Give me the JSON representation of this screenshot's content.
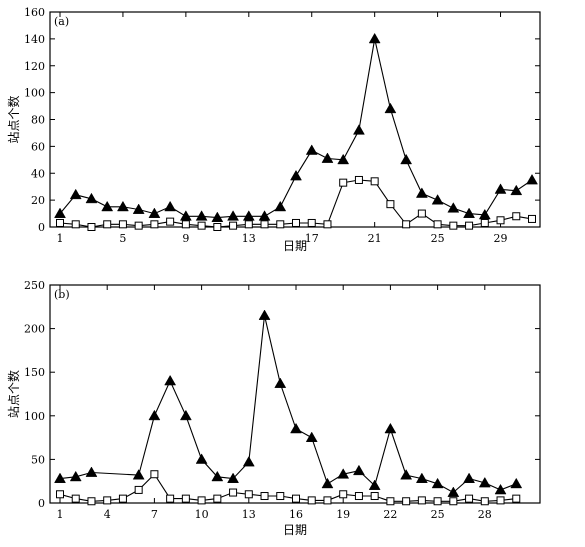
{
  "chart_data": [
    {
      "type": "line",
      "panel_label": "(a)",
      "xlabel": "日期",
      "ylabel": "站点个数",
      "xlim": [
        1,
        31
      ],
      "ylim": [
        0,
        160
      ],
      "x_ticks": [
        1,
        5,
        9,
        13,
        17,
        21,
        25,
        29
      ],
      "y_ticks": [
        0,
        20,
        40,
        60,
        80,
        100,
        120,
        140,
        160
      ],
      "grid": false,
      "series": [
        {
          "marker": "filled-triangle",
          "x": [
            1,
            2,
            3,
            4,
            5,
            6,
            7,
            8,
            9,
            10,
            11,
            12,
            13,
            14,
            15,
            16,
            17,
            18,
            19,
            20,
            21,
            22,
            23,
            24,
            25,
            26,
            27,
            28,
            29,
            30,
            31
          ],
          "y": [
            10,
            24,
            21,
            15,
            15,
            13,
            10,
            15,
            8,
            8,
            7,
            8,
            8,
            8,
            15,
            38,
            57,
            51,
            50,
            72,
            140,
            88,
            50,
            25,
            20,
            14,
            10,
            9,
            28,
            27,
            35
          ]
        },
        {
          "marker": "open-square",
          "x": [
            1,
            2,
            3,
            4,
            5,
            6,
            7,
            8,
            9,
            10,
            11,
            12,
            13,
            14,
            15,
            16,
            17,
            18,
            19,
            20,
            21,
            22,
            23,
            24,
            25,
            26,
            27,
            28,
            29,
            30,
            31
          ],
          "y": [
            3,
            2,
            0,
            2,
            2,
            1,
            2,
            4,
            2,
            1,
            0,
            1,
            2,
            2,
            2,
            3,
            3,
            2,
            33,
            35,
            34,
            17,
            2,
            10,
            2,
            1,
            1,
            3,
            5,
            8,
            6
          ]
        }
      ]
    },
    {
      "type": "line",
      "panel_label": "(b)",
      "xlabel": "日期",
      "ylabel": "站点个数",
      "xlim": [
        1,
        31
      ],
      "ylim": [
        0,
        250
      ],
      "x_ticks": [
        1,
        4,
        7,
        10,
        13,
        16,
        19,
        22,
        25,
        28
      ],
      "y_ticks": [
        0,
        50,
        100,
        150,
        200,
        250
      ],
      "grid": false,
      "series": [
        {
          "marker": "filled-triangle",
          "x": [
            1,
            2,
            3,
            6,
            7,
            8,
            9,
            10,
            11,
            12,
            13,
            14,
            15,
            16,
            17,
            18,
            19,
            20,
            21,
            22,
            23,
            24,
            25,
            26,
            27,
            28,
            29,
            30
          ],
          "y": [
            28,
            30,
            35,
            32,
            100,
            140,
            100,
            50,
            30,
            28,
            47,
            215,
            137,
            85,
            75,
            22,
            33,
            37,
            20,
            85,
            32,
            28,
            22,
            12,
            28,
            23,
            15,
            22
          ]
        },
        {
          "marker": "open-square",
          "x": [
            1,
            2,
            3,
            4,
            5,
            6,
            7,
            8,
            9,
            10,
            11,
            12,
            13,
            14,
            15,
            16,
            17,
            18,
            19,
            20,
            21,
            22,
            23,
            24,
            25,
            26,
            27,
            28,
            29,
            30
          ],
          "y": [
            10,
            5,
            2,
            3,
            5,
            15,
            33,
            5,
            5,
            3,
            5,
            12,
            10,
            8,
            8,
            5,
            3,
            3,
            10,
            8,
            8,
            2,
            2,
            3,
            2,
            2,
            5,
            2,
            3,
            5
          ]
        }
      ]
    }
  ]
}
